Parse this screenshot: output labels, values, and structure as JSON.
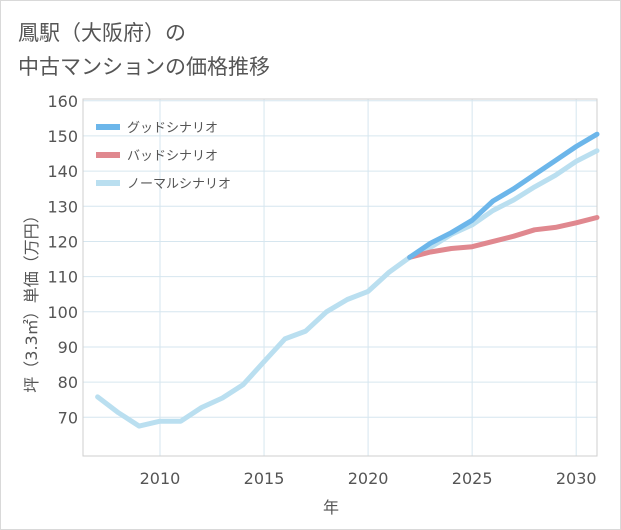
{
  "title": {
    "line1": "鳳駅（大阪府）の",
    "line2": "中古マンションの価格推移"
  },
  "chart_data": {
    "type": "line",
    "xlabel": "年",
    "ylabel": "坪（3.3㎡）単価（万円）",
    "xlim": [
      2006.3,
      2031
    ],
    "ylim": [
      59,
      160.5
    ],
    "xticks": [
      2010,
      2015,
      2020,
      2025,
      2030
    ],
    "yticks": [
      70,
      80,
      90,
      100,
      110,
      120,
      130,
      140,
      150,
      160
    ],
    "grid": true,
    "legend_position": "top-left",
    "series": [
      {
        "name": "グッドシナリオ",
        "color": "#6cb6ea",
        "x": [
          2022,
          2023,
          2024,
          2025,
          2026,
          2027,
          2028,
          2029,
          2030,
          2031
        ],
        "y": [
          115.5,
          119.5,
          122.5,
          126,
          131.5,
          135,
          139,
          143,
          147,
          150.5
        ]
      },
      {
        "name": "バッドシナリオ",
        "color": "#e0888f",
        "x": [
          2022,
          2023,
          2024,
          2025,
          2026,
          2027,
          2028,
          2029,
          2030,
          2031
        ],
        "y": [
          115.5,
          117,
          118,
          118.5,
          120,
          121.5,
          123.3,
          124,
          125.3,
          126.8
        ]
      },
      {
        "name": "ノーマルシナリオ",
        "color": "#badff0",
        "x": [
          2007,
          2008,
          2009,
          2010,
          2011,
          2012,
          2013,
          2014,
          2015,
          2016,
          2017,
          2018,
          2019,
          2020,
          2021,
          2022,
          2023,
          2024,
          2025,
          2026,
          2027,
          2028,
          2029,
          2030,
          2031
        ],
        "y": [
          75.8,
          71.3,
          67.5,
          68.9,
          68.9,
          72.8,
          75.5,
          79.3,
          85.8,
          92.3,
          94.5,
          100,
          103.5,
          105.8,
          111.2,
          115.5,
          118.3,
          122,
          124.7,
          128.8,
          131.8,
          135.5,
          138.8,
          142.8,
          145.8
        ]
      }
    ]
  }
}
